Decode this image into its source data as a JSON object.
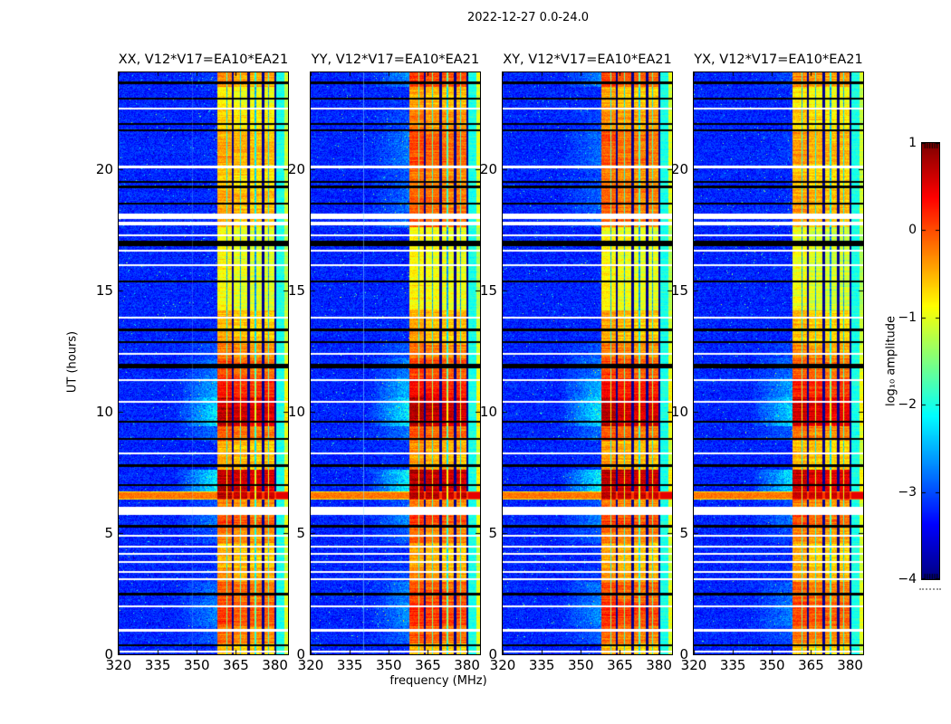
{
  "title": "2022-12-27 0.0-24.0",
  "chart_data": {
    "type": "heatmap",
    "title": "2022-12-27 0.0-24.0",
    "xlabel": "frequency (MHz)",
    "ylabel": "UT (hours)",
    "x_range": [
      320,
      385
    ],
    "y_range": [
      0,
      24
    ],
    "x_ticks": [
      "320",
      "335",
      "350",
      "365",
      "380"
    ],
    "x_tick_values": [
      320,
      335,
      350,
      365,
      380
    ],
    "y_ticks": [
      "0",
      "5",
      "10",
      "15",
      "20"
    ],
    "y_tick_values": [
      0,
      5,
      10,
      15,
      20
    ],
    "colorbar": {
      "label": "log₁₀ amplitude",
      "tick_labels": [
        "1",
        "0",
        "−1",
        "−2",
        "−3",
        "−4"
      ],
      "tick_values": [
        1,
        0,
        -1,
        -2,
        -3,
        -4
      ],
      "range": [
        -4,
        1
      ],
      "colormap": "jet"
    },
    "panels": [
      {
        "pol": "XX",
        "title": "XX, V12*V17=EA10*EA21",
        "seed": 11,
        "gain": 0.0,
        "top_boost": 0.0,
        "vlines": [
          {
            "mhz": 348,
            "alpha": 0.22
          }
        ]
      },
      {
        "pol": "YY",
        "title": "YY, V12*V17=EA10*EA21",
        "seed": 22,
        "gain": 0.08,
        "top_boost": 0.35,
        "vlines": [
          {
            "mhz": 340,
            "alpha": 0.5
          }
        ]
      },
      {
        "pol": "XY",
        "title": "XY, V12*V17=EA10*EA21",
        "seed": 33,
        "gain": 0.05,
        "top_boost": 0.3,
        "vlines": []
      },
      {
        "pol": "YX",
        "title": "YX, V12*V17=EA10*EA21",
        "seed": 44,
        "gain": -0.05,
        "top_boost": 0.08,
        "vlines": []
      }
    ],
    "features": {
      "background_level": -3.2,
      "rfi_band": {
        "start_mhz": 357.9,
        "end_mhz": 385.0,
        "blocks": [
          {
            "f0": 357.9,
            "f1": 363.3,
            "offset": 0.15
          },
          {
            "f0": 364.3,
            "f1": 369.3,
            "offset": 0.05
          },
          {
            "f0": 370.3,
            "f1": 374.8,
            "offset": 0.0
          },
          {
            "f0": 375.8,
            "f1": 379.8,
            "offset": 0.0
          }
        ],
        "fixed_blocks": [
          {
            "f0": 380.5,
            "f1": 383.6,
            "base": -2.0,
            "track": 0.0
          },
          {
            "f0": 383.6,
            "f1": 385.0,
            "base": -0.95,
            "track": 0.3
          }
        ],
        "separator_level": -3.9,
        "thin_lines_mhz": [
          361.4,
          366.9,
          372.5,
          377.5
        ]
      },
      "band_time_profile": [
        [
          0.0,
          0.45,
          -0.7
        ],
        [
          0.45,
          1.15,
          -0.3
        ],
        [
          1.15,
          2.15,
          -0.05
        ],
        [
          2.15,
          3.0,
          -0.2
        ],
        [
          3.0,
          3.6,
          -0.5
        ],
        [
          3.6,
          4.6,
          -0.65
        ],
        [
          4.6,
          5.35,
          -0.35
        ],
        [
          5.35,
          6.1,
          -0.1
        ],
        [
          6.1,
          6.4,
          -0.35
        ],
        [
          6.4,
          7.6,
          0.55
        ],
        [
          7.6,
          8.8,
          -0.6
        ],
        [
          8.8,
          9.4,
          -0.25
        ],
        [
          9.4,
          10.6,
          0.5
        ],
        [
          10.6,
          11.4,
          0.15
        ],
        [
          11.4,
          12.2,
          -0.15
        ],
        [
          12.2,
          12.9,
          -0.4
        ],
        [
          12.9,
          14.2,
          -0.65
        ],
        [
          14.2,
          17.6,
          -1.05
        ],
        [
          17.6,
          19.2,
          -0.6
        ],
        [
          19.2,
          20.2,
          -0.75
        ],
        [
          20.2,
          21.6,
          -0.55
        ],
        [
          21.6,
          22.6,
          -0.8
        ],
        [
          22.6,
          23.4,
          -1.0
        ],
        [
          23.4,
          24.0,
          -0.45
        ]
      ],
      "full_width_burst": {
        "h0": 6.4,
        "h1": 6.72,
        "level_outside_band": -0.2,
        "level_in_band": 0.6
      },
      "data_gaps_hours": [
        [
          0.08,
          0.16
        ],
        [
          0.95,
          1.03
        ],
        [
          1.95,
          2.03
        ],
        [
          3.05,
          3.12
        ],
        [
          3.36,
          3.44
        ],
        [
          3.76,
          3.84
        ],
        [
          4.1,
          4.18
        ],
        [
          4.4,
          4.48
        ],
        [
          4.85,
          4.93
        ],
        [
          5.75,
          6.08
        ],
        [
          8.25,
          8.31
        ],
        [
          10.36,
          10.44
        ],
        [
          11.26,
          11.34
        ],
        [
          12.36,
          12.44
        ],
        [
          13.86,
          13.94
        ],
        [
          16.0,
          16.07
        ],
        [
          16.6,
          16.67
        ],
        [
          17.25,
          17.32
        ],
        [
          17.68,
          17.84
        ],
        [
          17.95,
          18.16
        ],
        [
          20.04,
          20.14
        ],
        [
          22.46,
          22.54
        ]
      ],
      "flagged_rows_hours": [
        [
          0.34,
          0.42
        ],
        [
          2.44,
          2.52
        ],
        [
          5.24,
          5.32
        ],
        [
          6.94,
          7.02
        ],
        [
          7.74,
          7.82
        ],
        [
          8.84,
          8.92
        ],
        [
          9.54,
          9.62
        ],
        [
          11.78,
          12.0
        ],
        [
          12.84,
          12.92
        ],
        [
          13.34,
          13.42
        ],
        [
          15.34,
          15.42
        ],
        [
          16.84,
          17.04
        ],
        [
          18.54,
          18.62
        ],
        [
          19.24,
          19.32
        ],
        [
          19.44,
          19.52
        ],
        [
          21.58,
          21.66
        ],
        [
          21.84,
          21.92
        ],
        [
          22.88,
          22.95
        ],
        [
          23.52,
          23.62
        ]
      ]
    }
  }
}
